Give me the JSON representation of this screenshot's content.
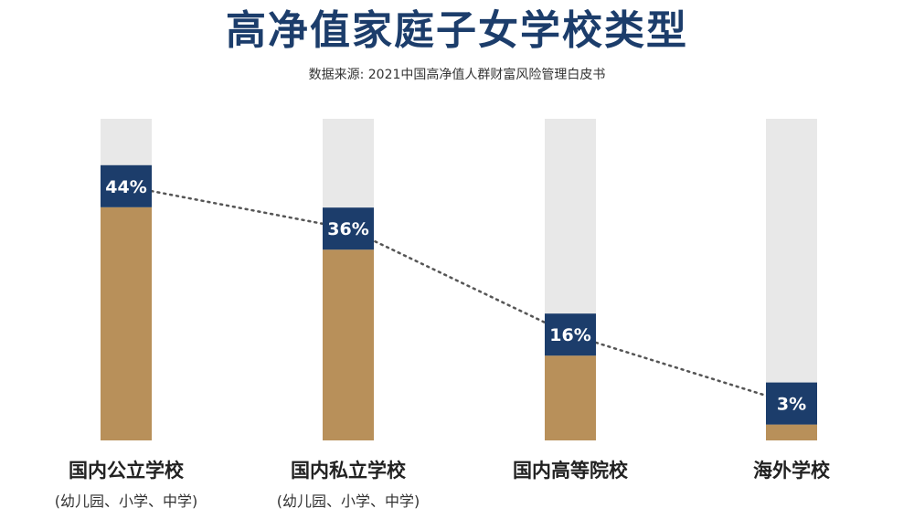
{
  "title": "高净值家庭子女学校类型",
  "subtitle": "数据来源: 2021中国高净值人群财富风险管理白皮书",
  "colors": {
    "bar_fill": "#b8905a",
    "bar_track": "#e8e8e8",
    "label_box": "#1c3d6b",
    "label_text": "#ffffff",
    "trend_line": "#555555"
  },
  "chart_data": {
    "type": "bar",
    "title": "高净值家庭子女学校类型",
    "categories": [
      "国内公立学校",
      "国内私立学校",
      "国内高等院校",
      "海外学校"
    ],
    "category_notes": [
      "(幼儿园、小学、中学)",
      "(幼儿园、小学、中学)",
      "",
      ""
    ],
    "values": [
      44,
      36,
      16,
      3
    ],
    "value_labels": [
      "44%",
      "36%",
      "16%",
      "3%"
    ],
    "unit": "%",
    "ylim": [
      0,
      100
    ],
    "grid": false,
    "trend_line": "dotted"
  }
}
